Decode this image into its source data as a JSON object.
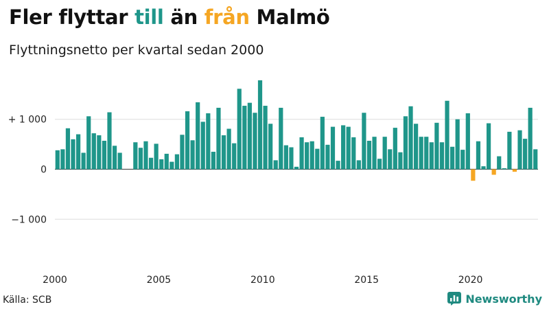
{
  "title": {
    "part1": "Fler flyttar ",
    "part2": "till",
    "part3": " än ",
    "part4": "från",
    "part5": " Malmö"
  },
  "subtitle": "Flyttningsnetto per kvartal sedan 2000",
  "source": "Källa: SCB",
  "brand": {
    "name": "Newsworthy",
    "icon": "bar-chart-logo-icon"
  },
  "colors": {
    "positive": "#1f968a",
    "negative": "#f5a623",
    "grid": "#dddddd",
    "zero": "#555555"
  },
  "chart_data": {
    "type": "bar",
    "x_start_year": 2000,
    "x_ticks": [
      "2000",
      "2005",
      "2010",
      "2015",
      "2020"
    ],
    "y_ticks": [
      {
        "value": 1000,
        "label": "+ 1 000"
      },
      {
        "value": 0,
        "label": "0"
      },
      {
        "value": -1000,
        "label": "−1 000"
      }
    ],
    "ylim": [
      -2000,
      1900
    ],
    "grid": true,
    "legend": "none",
    "values": [
      380,
      400,
      820,
      600,
      700,
      330,
      1060,
      720,
      680,
      570,
      1140,
      470,
      330,
      0,
      0,
      540,
      430,
      560,
      230,
      510,
      200,
      310,
      150,
      300,
      690,
      1160,
      580,
      1340,
      950,
      1120,
      350,
      1230,
      680,
      810,
      520,
      1610,
      1270,
      1330,
      1130,
      1780,
      1270,
      910,
      180,
      1230,
      480,
      440,
      50,
      640,
      540,
      560,
      410,
      1050,
      490,
      850,
      170,
      880,
      850,
      640,
      180,
      1130,
      570,
      650,
      210,
      650,
      400,
      830,
      340,
      1060,
      1260,
      910,
      650,
      650,
      540,
      930,
      540,
      1370,
      450,
      1000,
      390,
      1120,
      -230,
      560,
      60,
      920,
      -110,
      260,
      20,
      750,
      -50,
      780,
      610,
      1230,
      400
    ]
  }
}
